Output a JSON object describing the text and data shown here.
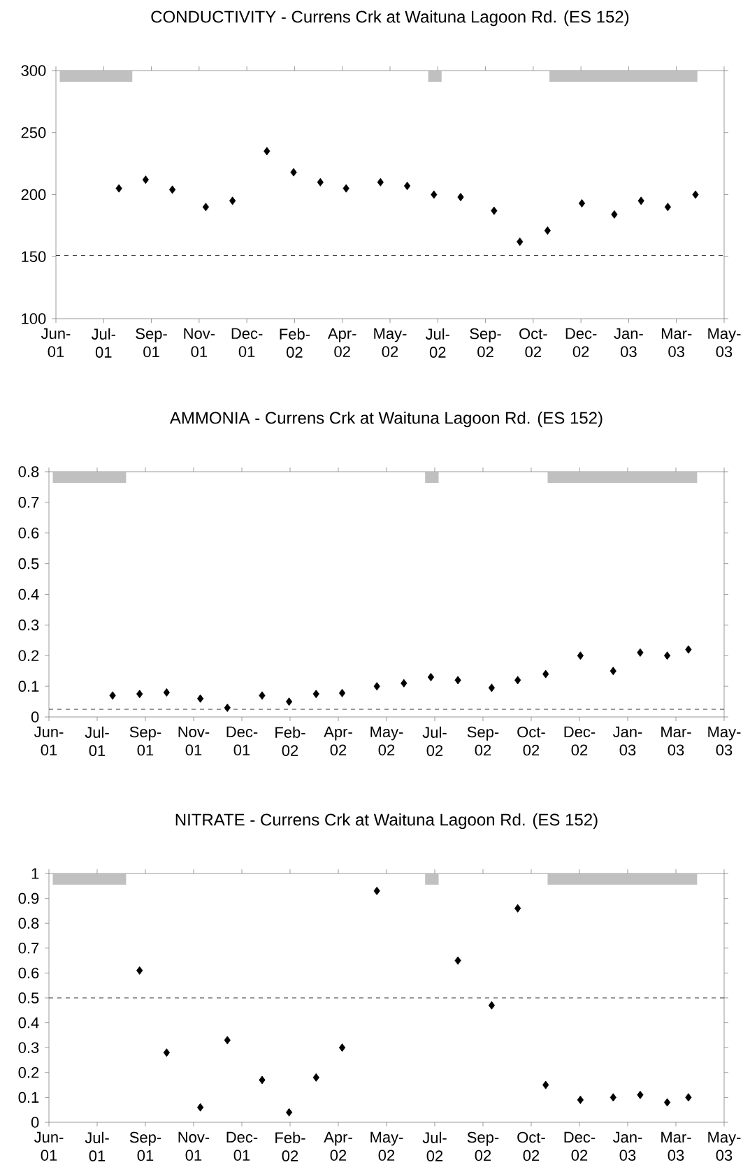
{
  "chart_data": [
    {
      "type": "scatter",
      "title": "CONDUCTIVITY - Currens Crk at Waituna Lagoon Rd. (ES 152)",
      "color": "#000000",
      "marker": "diamond",
      "x": [
        "2001-08-15",
        "2001-09-12",
        "2001-10-10",
        "2001-11-14",
        "2001-12-12",
        "2002-01-17",
        "2002-02-14",
        "2002-03-14",
        "2002-04-10",
        "2002-05-16",
        "2002-06-13",
        "2002-07-11",
        "2002-08-08",
        "2002-09-12",
        "2002-10-09",
        "2002-11-07",
        "2002-12-13",
        "2003-01-16",
        "2003-02-13",
        "2003-03-13",
        "2003-04-11"
      ],
      "values": [
        205,
        212,
        204,
        190,
        195,
        235,
        218,
        210,
        205,
        210,
        207,
        200,
        198,
        187,
        162,
        171,
        193,
        184,
        195,
        190,
        200
      ],
      "xlim": [
        "2001-06-10",
        "2003-05-11"
      ],
      "xticks": [
        {
          "value": "2001-06-10",
          "label": "Jun-01"
        },
        {
          "value": "2001-07-30",
          "label": "Jul-01"
        },
        {
          "value": "2001-09-18",
          "label": "Sep-01"
        },
        {
          "value": "2001-11-07",
          "label": "Nov-01"
        },
        {
          "value": "2001-12-27",
          "label": "Dec-01"
        },
        {
          "value": "2002-02-15",
          "label": "Feb-02"
        },
        {
          "value": "2002-04-06",
          "label": "Apr-02"
        },
        {
          "value": "2002-05-26",
          "label": "May-02"
        },
        {
          "value": "2002-07-15",
          "label": "Jul-02"
        },
        {
          "value": "2002-09-03",
          "label": "Sep-02"
        },
        {
          "value": "2002-10-23",
          "label": "Oct-02"
        },
        {
          "value": "2002-12-12",
          "label": "Dec-02"
        },
        {
          "value": "2003-01-31",
          "label": "Jan-03"
        },
        {
          "value": "2003-03-22",
          "label": "Mar-03"
        },
        {
          "value": "2003-05-11",
          "label": "May-03"
        }
      ],
      "ylim": [
        100,
        300
      ],
      "yticks": [
        100,
        150,
        200,
        250,
        300
      ],
      "ref_lines": [
        {
          "axis": "y",
          "value": 151,
          "line_style": "dashed"
        }
      ],
      "bands": [
        {
          "axis": "x",
          "from": "2001-06-14",
          "to": "2001-08-29",
          "color": "#c0c0c0"
        },
        {
          "axis": "x",
          "from": "2002-07-05",
          "to": "2002-07-19",
          "color": "#c0c0c0"
        },
        {
          "axis": "x",
          "from": "2002-11-09",
          "to": "2003-04-13",
          "color": "#c0c0c0"
        }
      ]
    },
    {
      "type": "scatter",
      "title": "AMMONIA - Currens Crk at Waituna Lagoon Rd. (ES 152)",
      "color": "#000000",
      "marker": "diamond",
      "x": [
        "2001-08-15",
        "2001-09-12",
        "2001-10-10",
        "2001-11-14",
        "2001-12-12",
        "2002-01-17",
        "2002-02-14",
        "2002-03-14",
        "2002-04-10",
        "2002-05-16",
        "2002-06-13",
        "2002-07-11",
        "2002-08-08",
        "2002-09-12",
        "2002-10-09",
        "2002-11-07",
        "2002-12-13",
        "2003-01-16",
        "2003-02-13",
        "2003-03-13",
        "2003-04-04"
      ],
      "values": [
        0.07,
        0.075,
        0.08,
        0.06,
        0.03,
        0.07,
        0.05,
        0.075,
        0.078,
        0.1,
        0.11,
        0.13,
        0.12,
        0.095,
        0.12,
        0.14,
        0.2,
        0.15,
        0.21,
        0.2,
        0.22
      ],
      "xlim": [
        "2001-06-10",
        "2003-05-11"
      ],
      "xticks": [
        {
          "value": "2001-06-10",
          "label": "Jun-01"
        },
        {
          "value": "2001-07-30",
          "label": "Jul-01"
        },
        {
          "value": "2001-09-18",
          "label": "Sep-01"
        },
        {
          "value": "2001-11-07",
          "label": "Nov-01"
        },
        {
          "value": "2001-12-27",
          "label": "Dec-01"
        },
        {
          "value": "2002-02-15",
          "label": "Feb-02"
        },
        {
          "value": "2002-04-06",
          "label": "Apr-02"
        },
        {
          "value": "2002-05-26",
          "label": "May-02"
        },
        {
          "value": "2002-07-15",
          "label": "Jul-02"
        },
        {
          "value": "2002-09-03",
          "label": "Sep-02"
        },
        {
          "value": "2002-10-23",
          "label": "Oct-02"
        },
        {
          "value": "2002-12-12",
          "label": "Dec-02"
        },
        {
          "value": "2003-01-31",
          "label": "Jan-03"
        },
        {
          "value": "2003-03-22",
          "label": "Mar-03"
        },
        {
          "value": "2003-05-11",
          "label": "May-03"
        }
      ],
      "ylim": [
        0,
        0.8
      ],
      "yticks": [
        0,
        0.1,
        0.2,
        0.3,
        0.4,
        0.5,
        0.6,
        0.7,
        0.8
      ],
      "ref_lines": [
        {
          "axis": "y",
          "value": 0.025,
          "line_style": "dashed"
        }
      ],
      "bands": [
        {
          "axis": "x",
          "from": "2001-06-14",
          "to": "2001-08-29",
          "color": "#c0c0c0"
        },
        {
          "axis": "x",
          "from": "2002-07-05",
          "to": "2002-07-19",
          "color": "#c0c0c0"
        },
        {
          "axis": "x",
          "from": "2002-11-09",
          "to": "2003-04-13",
          "color": "#c0c0c0"
        }
      ]
    },
    {
      "type": "scatter",
      "title": "NITRATE - Currens Crk at Waituna Lagoon Rd. (ES 152)",
      "color": "#000000",
      "marker": "diamond",
      "x": [
        "2001-09-12",
        "2001-10-10",
        "2001-11-14",
        "2001-12-12",
        "2002-01-17",
        "2002-02-14",
        "2002-03-14",
        "2002-04-10",
        "2002-05-16",
        "2002-08-08",
        "2002-09-12",
        "2002-10-09",
        "2002-11-07",
        "2002-12-13",
        "2003-01-16",
        "2003-02-13",
        "2003-03-13",
        "2003-04-04"
      ],
      "values": [
        0.61,
        0.28,
        0.06,
        0.33,
        0.17,
        0.04,
        0.18,
        0.3,
        0.93,
        0.65,
        0.47,
        0.86,
        0.15,
        0.09,
        0.1,
        0.11,
        0.08,
        0.1
      ],
      "xlim": [
        "2001-06-10",
        "2003-05-11"
      ],
      "xticks": [
        {
          "value": "2001-06-10",
          "label": "Jun-01"
        },
        {
          "value": "2001-07-30",
          "label": "Jul-01"
        },
        {
          "value": "2001-09-18",
          "label": "Sep-01"
        },
        {
          "value": "2001-11-07",
          "label": "Nov-01"
        },
        {
          "value": "2001-12-27",
          "label": "Dec-01"
        },
        {
          "value": "2002-02-15",
          "label": "Feb-02"
        },
        {
          "value": "2002-04-06",
          "label": "Apr-02"
        },
        {
          "value": "2002-05-26",
          "label": "May-02"
        },
        {
          "value": "2002-07-15",
          "label": "Jul-02"
        },
        {
          "value": "2002-09-03",
          "label": "Sep-02"
        },
        {
          "value": "2002-10-23",
          "label": "Oct-02"
        },
        {
          "value": "2002-12-12",
          "label": "Dec-02"
        },
        {
          "value": "2003-01-31",
          "label": "Jan-03"
        },
        {
          "value": "2003-03-22",
          "label": "Mar-03"
        },
        {
          "value": "2003-05-11",
          "label": "May-03"
        }
      ],
      "ylim": [
        0,
        1
      ],
      "yticks": [
        0,
        0.1,
        0.2,
        0.3,
        0.4,
        0.5,
        0.6,
        0.7,
        0.8,
        0.9,
        1
      ],
      "ref_lines": [
        {
          "axis": "y",
          "value": 0.5,
          "line_style": "dashed"
        }
      ],
      "bands": [
        {
          "axis": "x",
          "from": "2001-06-14",
          "to": "2001-08-29",
          "color": "#c0c0c0"
        },
        {
          "axis": "x",
          "from": "2002-07-05",
          "to": "2002-07-19",
          "color": "#c0c0c0"
        },
        {
          "axis": "x",
          "from": "2002-11-09",
          "to": "2003-04-13",
          "color": "#c0c0c0"
        }
      ]
    }
  ]
}
